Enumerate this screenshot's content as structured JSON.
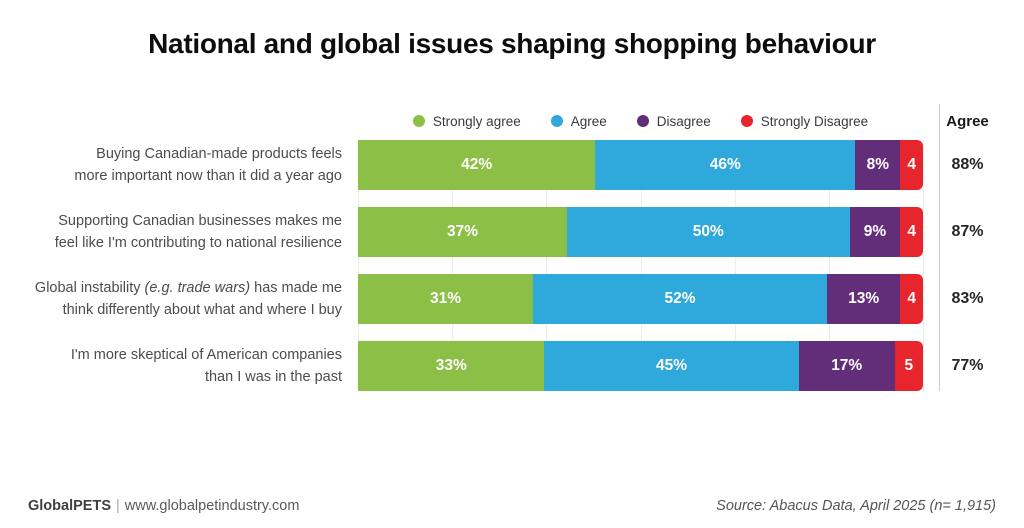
{
  "title": "National and global issues shaping shopping behaviour",
  "legend": {
    "items": [
      {
        "name": "Strongly agree",
        "color": "#8BBF45"
      },
      {
        "name": "Agree",
        "color": "#2FA8DC"
      },
      {
        "name": "Disagree",
        "color": "#622E79"
      },
      {
        "name": "Strongly Disagree",
        "color": "#E6262C"
      }
    ]
  },
  "agree_column": {
    "header": "Agree"
  },
  "chart_data": {
    "type": "bar",
    "orientation": "horizontal_stacked",
    "stack_unit": "percent",
    "xlim": [
      0,
      100
    ],
    "grid": "faint vertical lines",
    "legend_position": "top",
    "series": [
      {
        "name": "Strongly agree",
        "color": "#8BBF45"
      },
      {
        "name": "Agree",
        "color": "#2FA8DC"
      },
      {
        "name": "Disagree",
        "color": "#622E79"
      },
      {
        "name": "Strongly Disagree",
        "color": "#E6262C"
      }
    ],
    "rows": [
      {
        "label": "Buying Canadian-made products feels more important now than it did a year ago",
        "values": [
          42,
          46,
          8,
          4
        ],
        "segment_labels": [
          "42%",
          "46%",
          "8%",
          "4"
        ],
        "agree_total": "88%",
        "label_line1_pre": "Buying Canadian-made products feels",
        "label_line1_italic": "",
        "label_line1_post": "",
        "label_line2": "more important now than it did a year ago"
      },
      {
        "label": "Supporting Canadian businesses makes me feel like I'm contributing to national resilience",
        "values": [
          37,
          50,
          9,
          4
        ],
        "segment_labels": [
          "37%",
          "50%",
          "9%",
          "4"
        ],
        "agree_total": "87%",
        "label_line1_pre": "Supporting Canadian businesses makes me",
        "label_line1_italic": "",
        "label_line1_post": "",
        "label_line2": "feel like I'm contributing to national resilience"
      },
      {
        "label": "Global instability (e.g. trade wars) has made me think differently about what and where I buy",
        "values": [
          31,
          52,
          13,
          4
        ],
        "segment_labels": [
          "31%",
          "52%",
          "13%",
          "4"
        ],
        "agree_total": "83%",
        "label_line1_pre": "Global instability ",
        "label_line1_italic": "(e.g. trade wars)",
        "label_line1_post": " has made me",
        "label_line2": "think differently about what and where I buy"
      },
      {
        "label": "I'm more skeptical of American companies than I was in the past",
        "values": [
          33,
          45,
          17,
          5
        ],
        "segment_labels": [
          "33%",
          "45%",
          "17%",
          "5"
        ],
        "agree_total": "77%",
        "label_line1_pre": "I'm more skeptical of American companies",
        "label_line1_italic": "",
        "label_line1_post": "",
        "label_line2": "than I was in the past"
      }
    ]
  },
  "footer": {
    "brand": "GlobalPETS",
    "separator": "|",
    "website": "www.globalpetindustry.com",
    "source": "Source: Abacus Data, April 2025 (n= 1,915)"
  }
}
